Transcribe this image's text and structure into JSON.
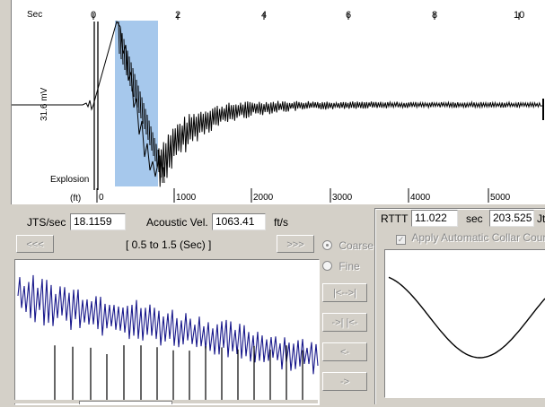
{
  "main_plot": {
    "sec_label": "Sec",
    "time_ticks": [
      "0",
      "2",
      "4",
      "6",
      "8",
      "10"
    ],
    "y_axis_label": "31.6 mV",
    "explosion_label": "Explosion",
    "ft_label": "(ft)",
    "depth_ticks": [
      "0",
      "1000",
      "2000",
      "3000",
      "4000",
      "5000"
    ],
    "selection_color": "#a6c8ec",
    "trace_color": "#000000"
  },
  "controls": {
    "jts_label": "JTS/sec",
    "jts_value": "18.1159",
    "acoustic_label": "Acoustic Vel.",
    "acoustic_value": "1063.41",
    "acoustic_unit": "ft/s",
    "prev_label": "<<<",
    "next_label": ">>>",
    "window_range": "[ 0.5  to  1.5 (Sec) ]",
    "coarse_label": "Coarse",
    "fine_label": "Fine",
    "coarse_selected": true,
    "buttons": [
      "|<-->|",
      "->| |<-",
      "<-",
      "->"
    ]
  },
  "rttt": {
    "label": "RTTT",
    "value": "11.022",
    "unit": "sec",
    "value2": "203.525",
    "unit2": "Jt",
    "auto_collar_label": "Apply Automatic Collar Count",
    "auto_collar_checked": true
  },
  "zoom_plot": {
    "trace_color": "#1a1a8c"
  },
  "curve_plot": {
    "trace_color": "#000000"
  }
}
